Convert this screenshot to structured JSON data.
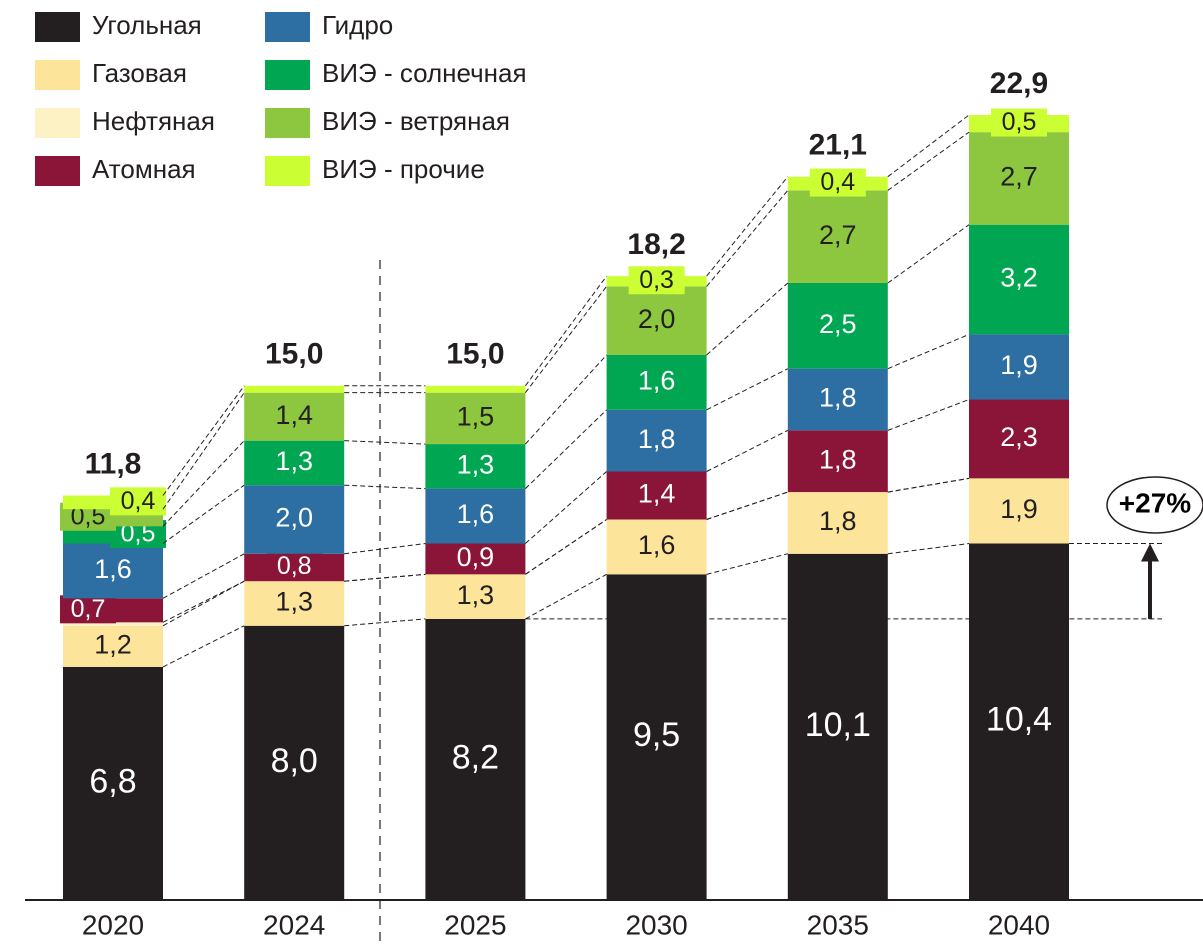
{
  "chart_data": {
    "type": "stacked_bar",
    "categories": [
      "2020",
      "2024",
      "2025",
      "2030",
      "2035",
      "2040"
    ],
    "series": [
      {
        "name": "Угольная",
        "color": "#231f20",
        "values": [
          6.8,
          8.0,
          8.2,
          9.5,
          10.1,
          10.4
        ],
        "value_labels": [
          "6,8",
          "8,0",
          "8,2",
          "9,5",
          "10,1",
          "10,4"
        ]
      },
      {
        "name": "Газовая",
        "color": "#fce49a",
        "values": [
          1.2,
          1.3,
          1.3,
          1.6,
          1.8,
          1.9
        ],
        "value_labels": [
          "1,2",
          "1,3",
          "1,3",
          "1,6",
          "1,8",
          "1,9"
        ]
      },
      {
        "name": "Нефтяная",
        "color": "#fdf2c4",
        "values": [
          0.1,
          0,
          0,
          0,
          0,
          0
        ],
        "value_labels": [
          null,
          null,
          null,
          null,
          null,
          null
        ]
      },
      {
        "name": "Атомная",
        "color": "#8b1538",
        "values": [
          0.7,
          0.8,
          0.9,
          1.4,
          1.8,
          2.3
        ],
        "value_labels": [
          "0,7",
          "0,8",
          "0,9",
          "1,4",
          "1,8",
          "2,3"
        ]
      },
      {
        "name": "Гидро",
        "color": "#2e6fa3",
        "values": [
          1.6,
          2.0,
          1.6,
          1.8,
          1.8,
          1.9
        ],
        "value_labels": [
          "1,6",
          "2,0",
          "1,6",
          "1,8",
          "1,8",
          "1,9"
        ]
      },
      {
        "name": "ВИЭ - солнечная",
        "color": "#00a651",
        "values": [
          0.5,
          1.3,
          1.3,
          1.6,
          2.5,
          3.2
        ],
        "value_labels": [
          "0,5",
          "1,3",
          "1,3",
          "1,6",
          "2,5",
          "3,2"
        ]
      },
      {
        "name": "ВИЭ - ветряная",
        "color": "#8dc63f",
        "values": [
          0.5,
          1.4,
          1.5,
          2.0,
          2.7,
          2.7
        ],
        "value_labels": [
          "0,5",
          "1,4",
          "1,5",
          "2,0",
          "2,7",
          "2,7"
        ]
      },
      {
        "name": "ВИЭ - прочие",
        "color": "#ccff33",
        "values": [
          0.4,
          0.2,
          0.2,
          0.3,
          0.4,
          0.5
        ],
        "value_labels": [
          "0,4",
          null,
          null,
          "0,3",
          "0,4",
          "0,5"
        ]
      }
    ],
    "totals": [
      11.8,
      15.0,
      15.0,
      18.2,
      21.1,
      22.9
    ],
    "total_labels": [
      "11,8",
      "15,0",
      "15,0",
      "18,2",
      "21,1",
      "22,9"
    ],
    "annotation": "+27%"
  }
}
